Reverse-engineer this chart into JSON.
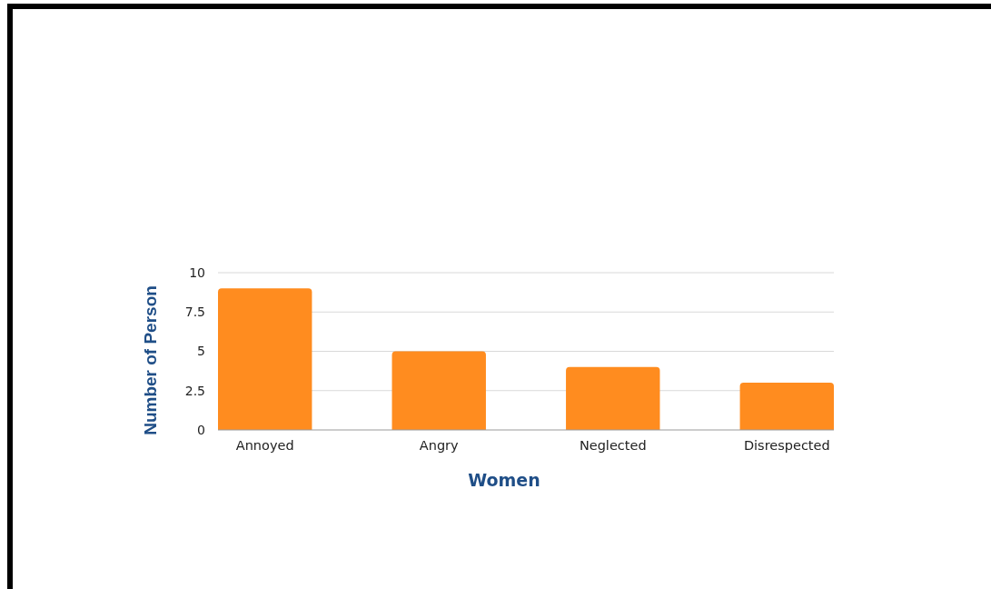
{
  "chart_data": {
    "type": "bar",
    "xlabel": "Women",
    "ylabel": "Number of Person",
    "categories": [
      "Annoyed",
      "Angry",
      "Neglected",
      "Disrespected"
    ],
    "values": [
      9,
      5,
      4,
      3
    ],
    "color": "#ff8c1f",
    "ylim": [
      0,
      10
    ],
    "yticks": [
      0,
      2.5,
      5,
      7.5,
      10
    ],
    "grid": "y"
  }
}
